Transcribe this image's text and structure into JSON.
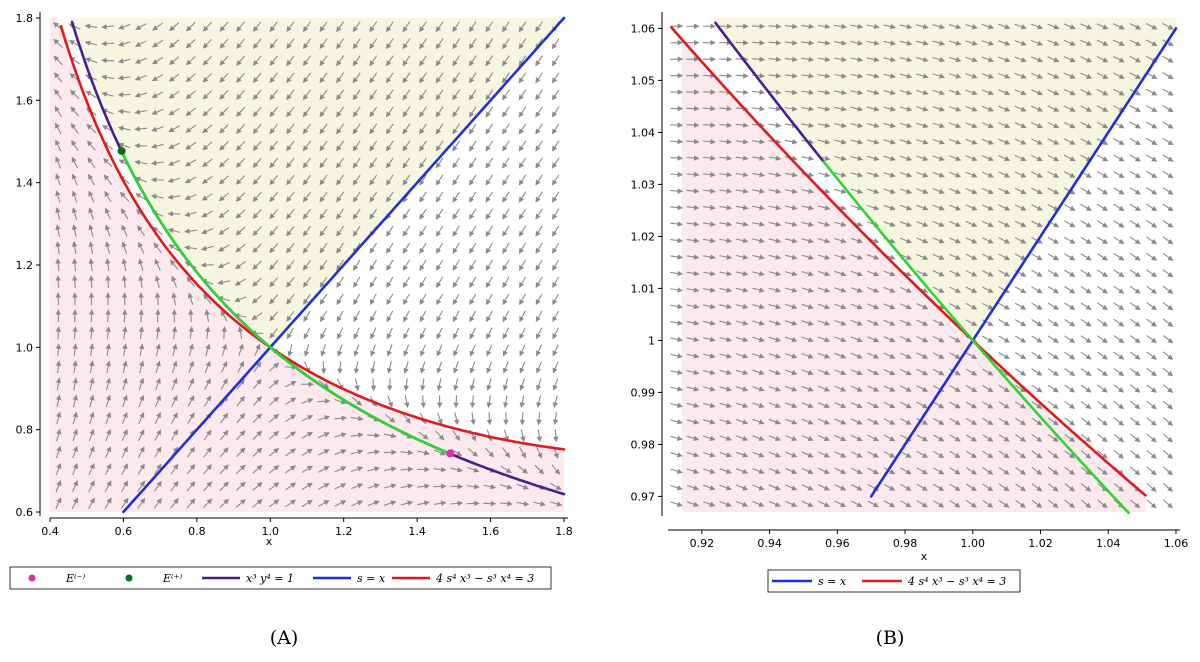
{
  "chart_data": [
    {
      "type": "line",
      "panel": "(A)",
      "xlabel": "x",
      "ylabel": "",
      "xlim": [
        0.4,
        1.8
      ],
      "ylim": [
        0.6,
        1.8
      ],
      "x_ticks": [
        "0.4",
        "0.6",
        "0.8",
        "1.0",
        "1.2",
        "1.4",
        "1.6",
        "1.8"
      ],
      "y_ticks": [
        "0.6",
        "0.8",
        "1.0",
        "1.2",
        "1.4",
        "1.6",
        "1.8"
      ],
      "grid": false,
      "background": "direction field (gray arrows); yellow region above both curves, pink region below",
      "series": [
        {
          "name": "x³y⁴=1",
          "color": "#4b1d8f",
          "curve": "y=x^(-3/4)",
          "x_range": [
            0.46,
            1.8
          ]
        },
        {
          "name": "s=x",
          "color": "#1f2fe0",
          "curve": "y=x",
          "x_range": [
            0.6,
            1.8
          ]
        },
        {
          "name": "4s⁴x³ − s³x⁴ = 3",
          "color": "#e01a1a",
          "curve": "4y^4x^3 - y^3x^4 = 3",
          "x_range": [
            0.43,
            1.8
          ]
        },
        {
          "name": "",
          "color": "#2fd52f",
          "curve": "y=x^(-3/4)",
          "x_range": [
            0.595,
            1.49
          ]
        }
      ],
      "points": [
        {
          "name": "E⁽⁻⁾",
          "x": 1.49,
          "y": 0.742,
          "color": "#d6339c"
        },
        {
          "name": "E⁽⁺⁾",
          "x": 0.595,
          "y": 1.477,
          "color": "#0d6b1f"
        }
      ],
      "legend": {
        "items": [
          {
            "label": "E⁽⁻⁾",
            "type": "point",
            "color": "#d6339c"
          },
          {
            "label": "E⁽⁺⁾",
            "type": "point",
            "color": "#0d6b1f"
          },
          {
            "label": "x³ y⁴ = 1",
            "type": "line",
            "color": "#4b1d8f"
          },
          {
            "label": "s = x",
            "type": "line",
            "color": "#1f2fe0"
          },
          {
            "label": "4 s⁴ x³ − s³ x⁴ = 3",
            "type": "line",
            "color": "#e01a1a"
          }
        ],
        "placement": "bottom"
      }
    },
    {
      "type": "line",
      "panel": "(B)",
      "xlabel": "x",
      "ylabel": "",
      "xlim": [
        0.91,
        1.06
      ],
      "ylim": [
        0.967,
        1.062
      ],
      "x_ticks": [
        "0.92",
        "0.94",
        "0.96",
        "0.98",
        "1.00",
        "1.02",
        "1.04",
        "1.06"
      ],
      "y_ticks": [
        "0.97",
        "0.98",
        "0.99",
        "1",
        "1.01",
        "1.02",
        "1.03",
        "1.04",
        "1.05",
        "1.06"
      ],
      "grid": false,
      "background": "direction field (gray arrows); yellow and pink shaded regions",
      "series": [
        {
          "name": "x³y⁴=1",
          "color": "#4b1d8f",
          "curve": "y=x^(-3/4)",
          "x_range": [
            0.924,
            0.956
          ]
        },
        {
          "name": "s=x",
          "color": "#1f2fe0",
          "curve": "y=x",
          "x_range": [
            0.97,
            1.06
          ]
        },
        {
          "name": "4s⁴x³ − s³x⁴ = 3",
          "color": "#e01a1a",
          "curve": "4y^4x^3 - y^3x^4 = 3",
          "x_range": [
            0.911,
            1.051
          ]
        },
        {
          "name": "",
          "color": "#2fd52f",
          "curve": "y=x^(-3/4)",
          "x_range": [
            0.956,
            1.046
          ]
        }
      ],
      "legend": {
        "items": [
          {
            "label": "s = x",
            "type": "line",
            "color": "#1f2fe0"
          },
          {
            "label": "4 s⁴ x³ − s³ x⁴ = 3",
            "type": "line",
            "color": "#e01a1a"
          }
        ],
        "placement": "bottom"
      }
    }
  ],
  "captions": {
    "a": "(A)",
    "b": "(B)"
  },
  "colors": {
    "arrow": "#8a8a8a",
    "yellow_region": "#f6f6e0",
    "pink_region": "#fbe9ee",
    "axis": "#000000"
  }
}
